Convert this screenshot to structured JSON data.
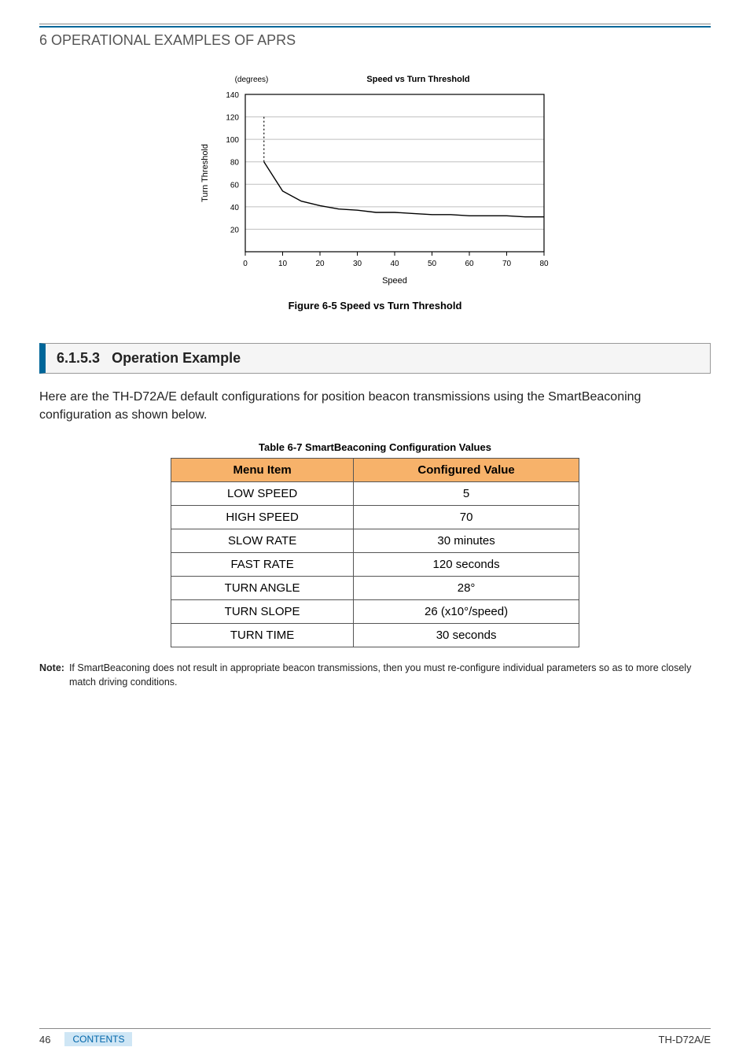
{
  "header": {
    "section_title": "6 OPERATIONAL EXAMPLES OF APRS"
  },
  "chart": {
    "type": "line",
    "title": "Speed vs Turn Threshold",
    "unit_label": "(degrees)",
    "xlabel": "Speed",
    "ylabel": "Turn Threshold",
    "xlim": [
      0,
      80
    ],
    "ylim": [
      0,
      140
    ],
    "xticks": [
      0,
      10,
      20,
      30,
      40,
      50,
      60,
      70,
      80
    ],
    "yticks": [
      20,
      40,
      60,
      80,
      100,
      120,
      140
    ],
    "title_fontsize": 11,
    "label_fontsize": 11,
    "tick_fontsize": 10,
    "background_color": "#ffffff",
    "grid_color": "#bfbfbf",
    "grid_on": true,
    "axis_color": "#000000",
    "solid_line": {
      "color": "#000000",
      "width": 1.4,
      "dash": "none",
      "points": [
        [
          5,
          80
        ],
        [
          10,
          54
        ],
        [
          15,
          45
        ],
        [
          20,
          41
        ],
        [
          25,
          38
        ],
        [
          30,
          37
        ],
        [
          35,
          35
        ],
        [
          40,
          35
        ],
        [
          45,
          34
        ],
        [
          50,
          33
        ],
        [
          55,
          33
        ],
        [
          60,
          32
        ],
        [
          65,
          32
        ],
        [
          70,
          32
        ],
        [
          75,
          31
        ],
        [
          80,
          31
        ]
      ]
    },
    "dotted_line": {
      "color": "#000000",
      "width": 1.2,
      "dash": "2,3",
      "points": [
        [
          5,
          120
        ],
        [
          5,
          80
        ]
      ]
    },
    "caption": "Figure 6-5  Speed vs Turn Threshold"
  },
  "subsection": {
    "number": "6.1.5.3",
    "title": "Operation Example"
  },
  "body": {
    "paragraph": "Here are the TH-D72A/E default configurations for position beacon transmissions using the SmartBeaconing configuration as shown below."
  },
  "table": {
    "caption": "Table 6-7  SmartBeaconing Configuration Values",
    "header_bg": "#f7b26a",
    "border_color": "#555555",
    "columns": [
      "Menu Item",
      "Configured Value"
    ],
    "rows": [
      [
        "LOW SPEED",
        "5"
      ],
      [
        "HIGH SPEED",
        "70"
      ],
      [
        "SLOW RATE",
        "30 minutes"
      ],
      [
        "FAST RATE",
        "120 seconds"
      ],
      [
        "TURN ANGLE",
        "28°"
      ],
      [
        "TURN SLOPE",
        "26 (x10°/speed)"
      ],
      [
        "TURN TIME",
        "30 seconds"
      ]
    ]
  },
  "note": {
    "label": "Note:",
    "text": "If SmartBeaconing does not result in appropriate beacon transmissions, then you must re-configure individual parameters so as to more closely match driving conditions."
  },
  "footer": {
    "page_number": "46",
    "contents_label": "CONTENTS",
    "model": "TH-D72A/E"
  }
}
